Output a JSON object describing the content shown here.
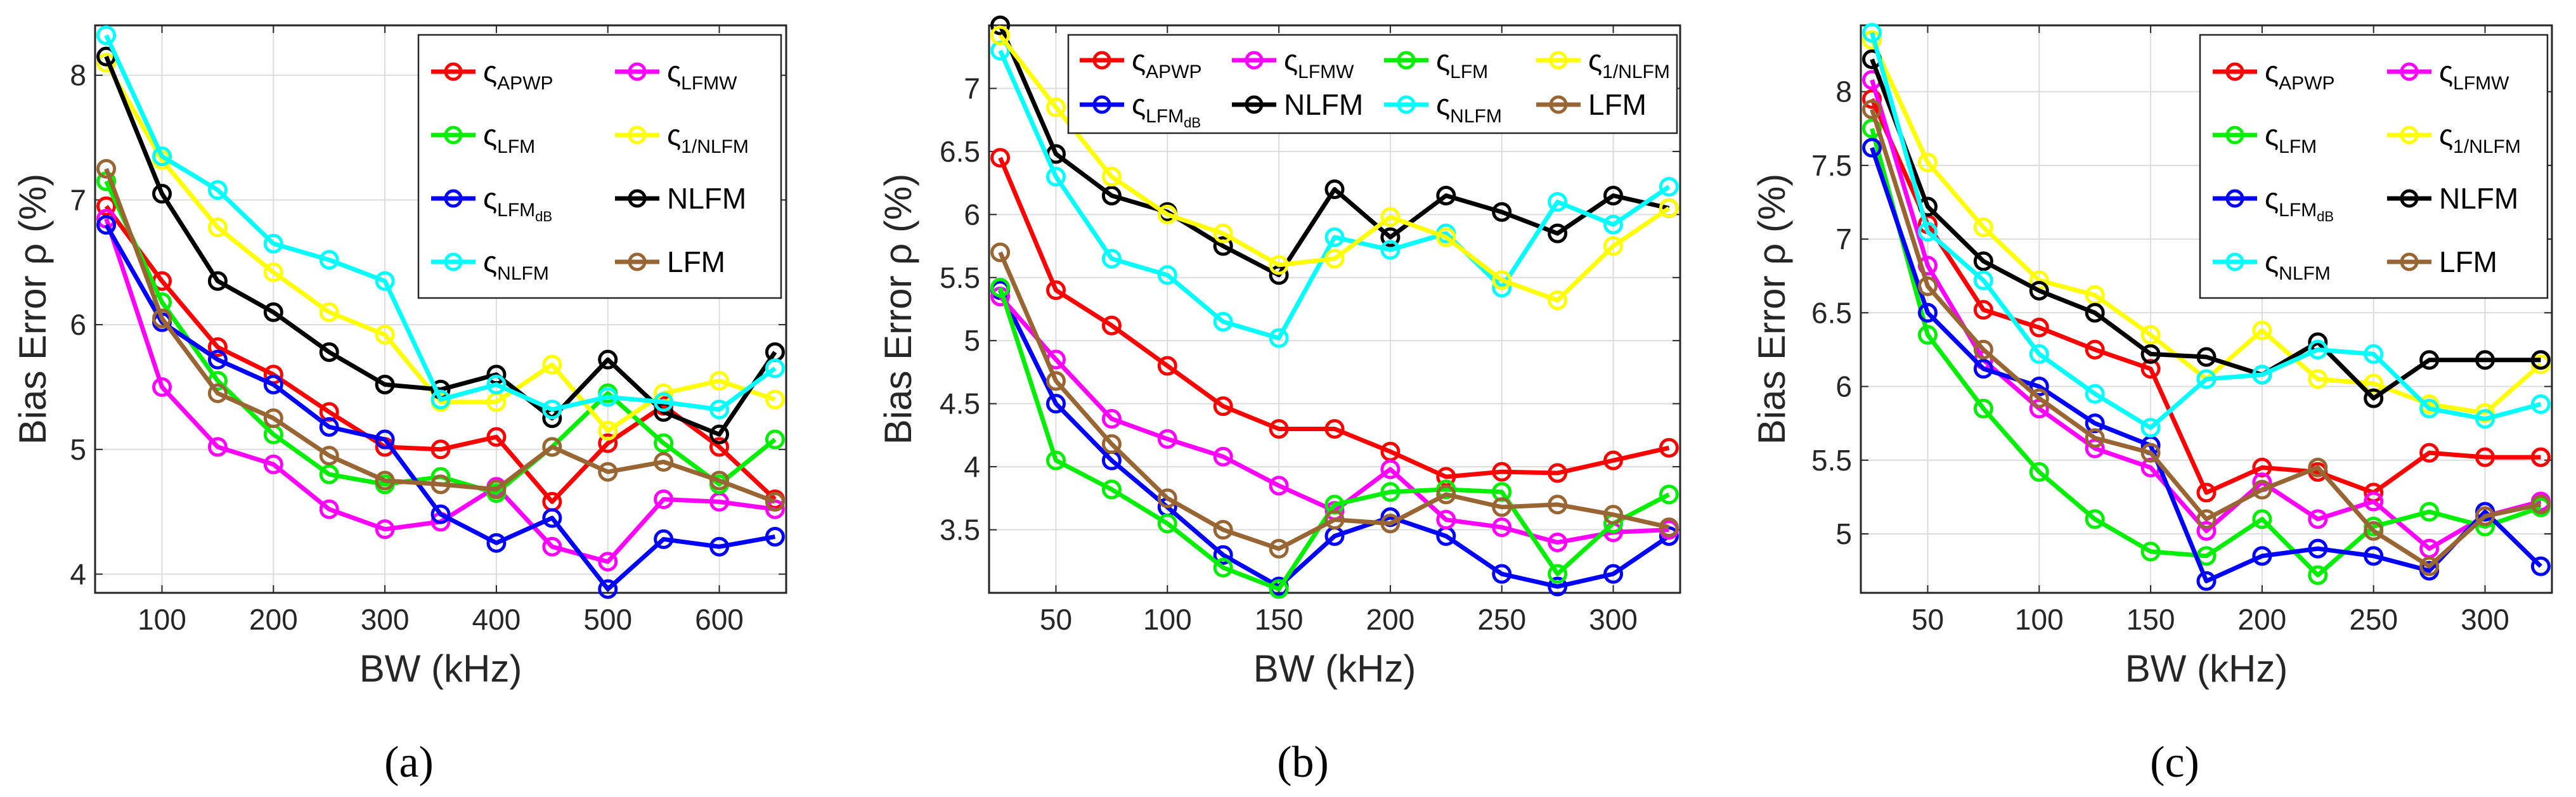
{
  "chart_data": [
    {
      "type": "line",
      "caption": "(a)",
      "xlabel": "BW (kHz)",
      "ylabel": "Bias Error  ρ (%)",
      "xlim": [
        40,
        660
      ],
      "ylim": [
        3.85,
        8.4
      ],
      "xticks": [
        100,
        200,
        300,
        400,
        500,
        600
      ],
      "yticks": [
        4,
        5,
        6,
        7,
        8
      ],
      "x": [
        50,
        100,
        150,
        200,
        250,
        300,
        350,
        400,
        450,
        500,
        550,
        600,
        650
      ],
      "series": [
        {
          "name": "ς",
          "sub": "APWP",
          "color": "#ff0000",
          "values": [
            6.95,
            6.35,
            5.82,
            5.6,
            5.3,
            5.02,
            5.0,
            5.1,
            4.58,
            5.05,
            5.35,
            5.02,
            4.6
          ]
        },
        {
          "name": "ς",
          "sub": "LFMW",
          "color": "#ff00ff",
          "values": [
            6.85,
            5.5,
            5.02,
            4.88,
            4.52,
            4.36,
            4.42,
            4.7,
            4.22,
            4.1,
            4.6,
            4.58,
            4.52
          ]
        },
        {
          "name": "ς",
          "sub": "LFM",
          "color": "#00ee00",
          "values": [
            7.15,
            6.18,
            5.55,
            5.12,
            4.8,
            4.72,
            4.78,
            4.65,
            5.02,
            5.45,
            5.05,
            4.72,
            5.08
          ]
        },
        {
          "name": "ς",
          "sub": "1/NLFM",
          "color": "#ffff00",
          "values": [
            8.1,
            7.32,
            6.78,
            6.42,
            6.1,
            5.92,
            5.38,
            5.38,
            5.68,
            5.15,
            5.45,
            5.55,
            5.4
          ]
        },
        {
          "name": "ς",
          "sub": "LFM_dB",
          "color": "#0000ff",
          "values": [
            6.8,
            6.02,
            5.72,
            5.52,
            5.18,
            5.08,
            4.48,
            4.25,
            4.45,
            3.88,
            4.28,
            4.22,
            4.3
          ]
        },
        {
          "name": "NLFM",
          "sub": "",
          "color": "#000000",
          "values": [
            8.15,
            7.05,
            6.35,
            6.1,
            5.78,
            5.52,
            5.48,
            5.6,
            5.25,
            5.72,
            5.3,
            5.12,
            5.78
          ]
        },
        {
          "name": "ς",
          "sub": "NLFM",
          "color": "#00ffff",
          "values": [
            8.32,
            7.35,
            7.08,
            6.65,
            6.52,
            6.35,
            5.4,
            5.52,
            5.32,
            5.42,
            5.38,
            5.32,
            5.65
          ]
        },
        {
          "name": "LFM",
          "sub": "",
          "color": "#996633",
          "values": [
            7.25,
            6.05,
            5.45,
            5.25,
            4.95,
            4.75,
            4.72,
            4.68,
            5.02,
            4.82,
            4.9,
            4.75,
            4.58
          ]
        }
      ],
      "legend": {
        "position": "top-right",
        "columns": 2,
        "order": [
          0,
          1,
          2,
          3,
          4,
          5,
          6,
          7
        ]
      }
    },
    {
      "type": "line",
      "caption": "(b)",
      "xlabel": "BW (kHz)",
      "ylabel": "Bias Error  ρ (%)",
      "xlim": [
        20,
        330
      ],
      "ylim": [
        3.0,
        7.5
      ],
      "xticks": [
        50,
        100,
        150,
        200,
        250,
        300
      ],
      "yticks": [
        3.5,
        4,
        4.5,
        5,
        5.5,
        6,
        6.5,
        7
      ],
      "x": [
        25,
        50,
        75,
        100,
        125,
        150,
        175,
        200,
        225,
        250,
        275,
        300,
        325
      ],
      "series": [
        {
          "name": "ς",
          "sub": "APWP",
          "color": "#ff0000",
          "values": [
            6.45,
            5.4,
            5.12,
            4.8,
            4.48,
            4.3,
            4.3,
            4.12,
            3.92,
            3.96,
            3.95,
            4.05,
            4.15
          ]
        },
        {
          "name": "ς",
          "sub": "LFM_dB",
          "color": "#0000ff",
          "values": [
            5.4,
            4.5,
            4.05,
            3.68,
            3.3,
            3.05,
            3.45,
            3.6,
            3.45,
            3.15,
            3.05,
            3.15,
            3.45
          ]
        },
        {
          "name": "ς",
          "sub": "LFMW",
          "color": "#ff00ff",
          "values": [
            5.35,
            4.85,
            4.38,
            4.22,
            4.08,
            3.85,
            3.65,
            3.98,
            3.58,
            3.52,
            3.4,
            3.48,
            3.5
          ]
        },
        {
          "name": "NLFM",
          "sub": "",
          "color": "#000000",
          "values": [
            7.5,
            6.48,
            6.15,
            6.02,
            5.75,
            5.52,
            6.2,
            5.82,
            6.15,
            6.02,
            5.85,
            6.15,
            6.05
          ]
        },
        {
          "name": "ς",
          "sub": "LFM",
          "color": "#00ee00",
          "values": [
            5.42,
            4.05,
            3.82,
            3.55,
            3.2,
            3.03,
            3.7,
            3.8,
            3.82,
            3.8,
            3.15,
            3.55,
            3.78
          ]
        },
        {
          "name": "ς",
          "sub": "NLFM",
          "color": "#00ffff",
          "values": [
            7.3,
            6.3,
            5.65,
            5.52,
            5.15,
            5.02,
            5.82,
            5.72,
            5.85,
            5.42,
            6.1,
            5.92,
            6.22
          ]
        },
        {
          "name": "ς",
          "sub": "1/NLFM",
          "color": "#ffff00",
          "values": [
            7.42,
            6.85,
            6.3,
            6.0,
            5.85,
            5.6,
            5.65,
            5.98,
            5.82,
            5.48,
            5.32,
            5.75,
            6.05
          ]
        },
        {
          "name": "LFM",
          "sub": "",
          "color": "#996633",
          "values": [
            5.7,
            4.68,
            4.18,
            3.75,
            3.5,
            3.35,
            3.58,
            3.55,
            3.78,
            3.68,
            3.7,
            3.62,
            3.52
          ]
        }
      ],
      "legend": {
        "position": "top",
        "columns": 4,
        "order": [
          0,
          1,
          2,
          3,
          4,
          5,
          6,
          7
        ]
      }
    },
    {
      "type": "line",
      "caption": "(c)",
      "xlabel": "BW (kHz)",
      "ylabel": "Bias Error  ρ (%)",
      "xlim": [
        20,
        330
      ],
      "ylim": [
        4.6,
        8.45
      ],
      "xticks": [
        50,
        100,
        150,
        200,
        250,
        300
      ],
      "yticks": [
        5,
        5.5,
        6,
        6.5,
        7,
        7.5,
        8
      ],
      "x": [
        25,
        50,
        75,
        100,
        125,
        150,
        175,
        200,
        225,
        250,
        275,
        300,
        325
      ],
      "series": [
        {
          "name": "ς",
          "sub": "APWP",
          "color": "#ff0000",
          "values": [
            7.95,
            7.1,
            6.52,
            6.4,
            6.25,
            6.12,
            5.28,
            5.45,
            5.42,
            5.28,
            5.55,
            5.52,
            5.52
          ]
        },
        {
          "name": "ς",
          "sub": "LFMW",
          "color": "#ff00ff",
          "values": [
            8.08,
            6.82,
            6.18,
            5.85,
            5.58,
            5.45,
            5.02,
            5.35,
            5.1,
            5.22,
            4.9,
            5.12,
            5.22
          ]
        },
        {
          "name": "ς",
          "sub": "LFM",
          "color": "#00ee00",
          "values": [
            7.75,
            6.35,
            5.85,
            5.42,
            5.1,
            4.88,
            4.85,
            5.1,
            4.72,
            5.05,
            5.15,
            5.05,
            5.18
          ]
        },
        {
          "name": "ς",
          "sub": "1/NLFM",
          "color": "#ffff00",
          "values": [
            8.35,
            7.52,
            7.08,
            6.72,
            6.62,
            6.35,
            6.05,
            6.38,
            6.05,
            6.02,
            5.88,
            5.82,
            6.15
          ]
        },
        {
          "name": "ς",
          "sub": "LFM_dB",
          "color": "#0000ff",
          "values": [
            7.62,
            6.5,
            6.12,
            6.0,
            5.75,
            5.6,
            4.68,
            4.85,
            4.9,
            4.85,
            4.75,
            5.15,
            4.78
          ]
        },
        {
          "name": "NLFM",
          "sub": "",
          "color": "#000000",
          "values": [
            8.22,
            7.22,
            6.85,
            6.65,
            6.5,
            6.22,
            6.2,
            6.08,
            6.3,
            5.92,
            6.18,
            6.18,
            6.18
          ]
        },
        {
          "name": "ς",
          "sub": "NLFM",
          "color": "#00ffff",
          "values": [
            8.4,
            7.05,
            6.72,
            6.22,
            5.95,
            5.72,
            6.05,
            6.08,
            6.25,
            6.22,
            5.85,
            5.78,
            5.88
          ]
        },
        {
          "name": "LFM",
          "sub": "",
          "color": "#996633",
          "values": [
            7.88,
            6.68,
            6.25,
            5.92,
            5.65,
            5.55,
            5.1,
            5.3,
            5.45,
            5.02,
            4.78,
            5.12,
            5.2
          ]
        }
      ],
      "legend": {
        "position": "top-right",
        "columns": 2,
        "order": [
          0,
          1,
          2,
          3,
          4,
          5,
          6,
          7
        ]
      }
    }
  ]
}
